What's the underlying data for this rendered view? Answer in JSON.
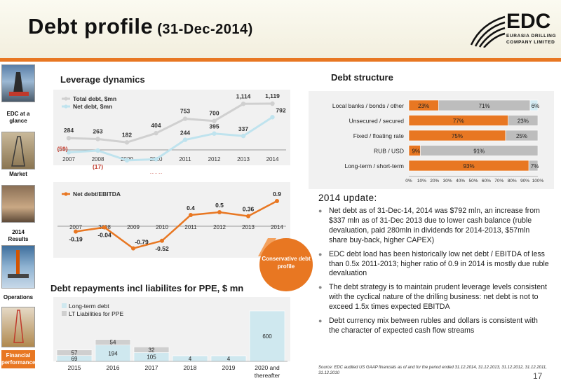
{
  "header": {
    "title": "Debt profile",
    "subtitle": "(31-Dec-2014)",
    "logo_text": "EDC",
    "logo_line1": "EURASIA DRILLING",
    "logo_line2": "COMPANY LIMITED"
  },
  "sidebar": {
    "items": [
      {
        "label": "EDC at a glance",
        "active": false
      },
      {
        "label": "Market",
        "active": false
      },
      {
        "label": "2014 Results",
        "active": false
      },
      {
        "label": "Operations",
        "active": false
      },
      {
        "label": "Financial performance",
        "active": true
      }
    ]
  },
  "sections": {
    "leverage_title": "Leverage dynamics",
    "debt_structure_title": "Debt structure",
    "repayments_title": "Debt repayments incl liabilites for PPE, $ mn"
  },
  "badge": {
    "text": "Conservative debt profile"
  },
  "update": {
    "title": "2014 update:",
    "bullets": [
      "Net debt as of 31-Dec-14, 2014 was $792 mln, an increase from $337 mln as of 31-Dec 2013 due to lower cash balance (ruble devaluation, paid 280mln in dividends for 2014-2013, $57mln share buy-back, higher CAPEX)",
      "EDC debt load has been historically low net debt / EBITDA of less than 0.5x 2011-2013; higher ratio of 0.9 in 2014 is mostly due ruble devaluation",
      "The debt strategy is to maintain prudent leverage levels consistent with the cyclical nature of the drilling business: net debt is not to exceed 1.5x times expected EBITDA",
      "Debt currency mix between rubles and dollars is consistent with the character of expected cash flow streams"
    ]
  },
  "source": "Source: EDC audited US GAAP financials as of and for the period ended 31.12.2014, 31.12.2013, 31.12.2012, 31.12.2011, 31.12.2010",
  "page_number": "17",
  "colors": {
    "orange": "#e87722",
    "grey": "#bdbdbd",
    "light_blue": "#cfe8ef",
    "accent_line": "#a9d8e6"
  },
  "chart_data": [
    {
      "type": "line",
      "title": "Leverage dynamics",
      "legend_position": "top-left",
      "x": [
        "2007",
        "2008",
        "2009",
        "2010",
        "2011",
        "2012",
        "2013",
        "2014"
      ],
      "series": [
        {
          "name": "Total debt, $mn",
          "color": "#d0d0d0",
          "values": [
            284,
            263,
            182,
            404,
            753,
            700,
            1114,
            1119
          ],
          "labels": [
            "284",
            "263",
            "182",
            "404",
            "753",
            "700",
            "1,114",
            "1,119"
          ]
        },
        {
          "name": "Net debt, $mn",
          "color": "#bfe3ee",
          "values": [
            -59,
            -17,
            -252,
            -226,
            244,
            395,
            337,
            792
          ],
          "labels": [
            "(59)",
            "(17)",
            "(252)",
            "(226)",
            "244",
            "395",
            "337",
            "792"
          ]
        }
      ]
    },
    {
      "type": "line",
      "legend_position": "top-left",
      "x": [
        "2007",
        "2008",
        "2009",
        "2010",
        "2011",
        "2012",
        "2013",
        "2014"
      ],
      "series": [
        {
          "name": "Net debt/EBITDA",
          "color": "#e87722",
          "values": [
            -0.19,
            -0.04,
            -0.79,
            -0.52,
            0.4,
            0.5,
            0.36,
            0.9
          ],
          "labels": [
            "-0.19",
            "-0.04",
            "-0.79",
            "-0.52",
            "0.4",
            "0.5",
            "0.36",
            "0.9"
          ]
        }
      ]
    },
    {
      "type": "bar",
      "stacked": true,
      "horizontal": true,
      "title": "Debt structure",
      "categories": [
        "Local banks / bonds / other",
        "Unsecured / secured",
        "Fixed / floating rate",
        "RUB / USD",
        "Long-term / short-term"
      ],
      "series": [
        {
          "color": "#e87722",
          "values": [
            23,
            77,
            75,
            9,
            93
          ]
        },
        {
          "color": "#bdbdbd",
          "values": [
            71,
            23,
            25,
            91,
            7
          ]
        },
        {
          "color": "#d4ebf3",
          "values": [
            6,
            0,
            0,
            0,
            0
          ]
        }
      ],
      "x_ticks": [
        "0%",
        "10%",
        "20%",
        "30%",
        "40%",
        "50%",
        "60%",
        "70%",
        "80%",
        "90%",
        "100%"
      ],
      "xlim": [
        0,
        100
      ]
    },
    {
      "type": "bar",
      "stacked": true,
      "title": "Debt repayments incl liabilites for PPE, $ mn",
      "legend_position": "top-left",
      "categories": [
        "2015",
        "2016",
        "2017",
        "2018",
        "2019",
        "2020 and thereafter"
      ],
      "series": [
        {
          "name": "Long-term debt",
          "color": "#cfe8ef",
          "values": [
            69,
            194,
            105,
            4,
            4,
            600
          ]
        },
        {
          "name": "LT Liabilities for PPE",
          "color": "#cfcfcf",
          "values": [
            57,
            54,
            32,
            0,
            0,
            0
          ]
        }
      ],
      "ylim": [
        0,
        630
      ]
    }
  ]
}
